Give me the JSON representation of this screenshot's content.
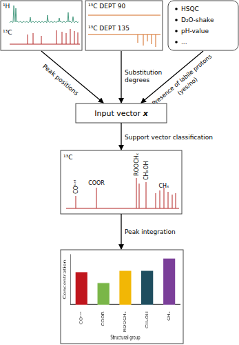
{
  "nmr_panel": {
    "labels": [
      "¹H",
      "¹³C"
    ]
  },
  "dept_panel": {
    "labels": [
      "¹³C DEPT 90",
      "¹³C DEPT 135"
    ]
  },
  "extra_panel": {
    "items": [
      "HSQC",
      "D₂O-shake",
      "pH-value",
      "..."
    ]
  },
  "arrows": {
    "peak_positions": [
      "Peak positions"
    ],
    "substitution_degrees": [
      "Substitution",
      "degrees"
    ],
    "labile_protons": [
      "Presence of labile protons",
      "(yes/no)"
    ],
    "classification": [
      "Support vector classification"
    ],
    "integration": [
      "Peak integration"
    ]
  },
  "input_box": {
    "label": "Input vector",
    "symbol": "x"
  },
  "classified_spectrum": {
    "label": "¹³C",
    "peaks": [
      "COᵏᵉᵗ",
      "COOR",
      "ROOCHₓ",
      "CHₓOH",
      "CHₓ"
    ]
  },
  "chart_data": {
    "type": "bar",
    "x_label": "Structural group",
    "y_label": "Concentration",
    "categories": [
      "COᵏᵉᵗ",
      "COOR",
      "ROOCHₓ",
      "CHₓOH",
      "CHₓ"
    ],
    "values": [
      45,
      30,
      47,
      47,
      64
    ],
    "colors": [
      "#c0161d",
      "#7ab648",
      "#f2b705",
      "#1f4e5f",
      "#7b3f99"
    ],
    "ylim": [
      0,
      70
    ],
    "grid": false,
    "tick_labels": "x"
  }
}
